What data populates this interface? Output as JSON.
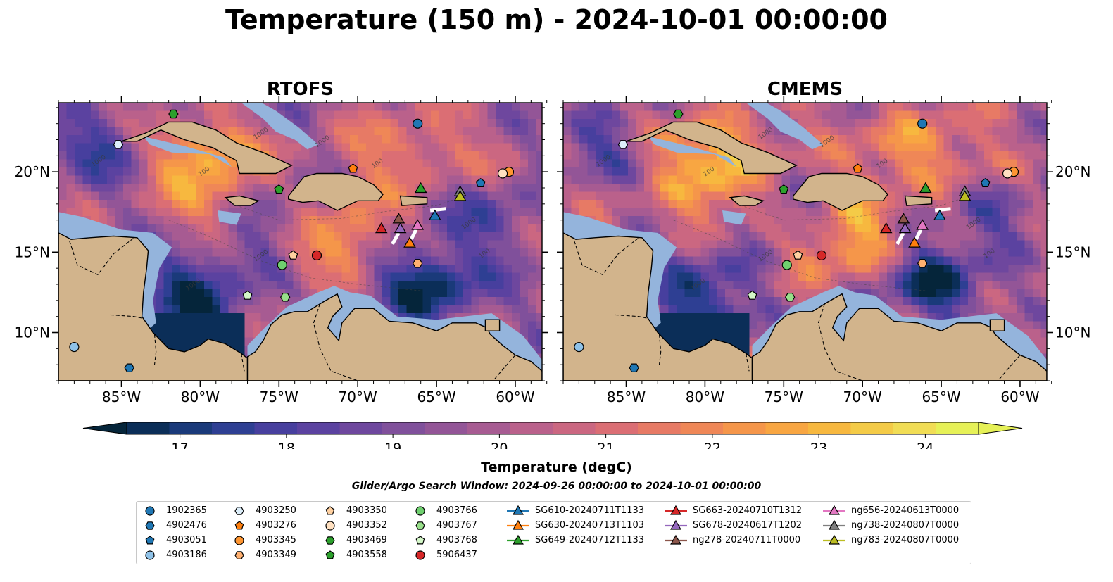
{
  "title": "Temperature (150 m) - 2024-10-01 00:00:00",
  "panels": [
    {
      "title": "RTOFS",
      "variant": "rtofs"
    },
    {
      "title": "CMEMS",
      "variant": "cmems"
    }
  ],
  "axes": {
    "x_ticks": [
      "85°W",
      "80°W",
      "75°W",
      "70°W",
      "65°W",
      "60°W"
    ],
    "x_values": [
      -85,
      -80,
      -75,
      -70,
      -65,
      -60
    ],
    "y_ticks": [
      "20°N",
      "15°N",
      "10°N"
    ],
    "y_values": [
      20,
      15,
      10
    ],
    "lon_range": [
      -89,
      -58.3
    ],
    "lat_range": [
      7,
      24.3
    ]
  },
  "contour_labels": [
    "1000",
    "100"
  ],
  "colorbar": {
    "label": "Temperature (degC)",
    "ticks": [
      "17",
      "18",
      "19",
      "20",
      "21",
      "22",
      "23",
      "24"
    ],
    "range": [
      16.5,
      24.5
    ],
    "step": 0.5,
    "extend": "both",
    "colormap": "thermal",
    "colors": [
      "#05253a",
      "#0b2e58",
      "#1a3a7a",
      "#2e3f93",
      "#473f9e",
      "#5b42a0",
      "#6e479e",
      "#80509b",
      "#935597",
      "#a75b92",
      "#ba618b",
      "#cb6781",
      "#db6e74",
      "#e77a65",
      "#ef8757",
      "#f5964a",
      "#f8a642",
      "#f7b83f",
      "#f4cb47",
      "#f1dd55",
      "#e6f157"
    ],
    "land_color": "#d2b48c",
    "shelf_color": "#94b4dc"
  },
  "search_window": "Glider/Argo Search Window: 2024-09-26 00:00:00 to 2024-10-01 00:00:00",
  "legend": [
    {
      "label": "1902365",
      "marker": "circle",
      "color": "#1f77b4"
    },
    {
      "label": "4902476",
      "marker": "hexagon",
      "color": "#1f77b4"
    },
    {
      "label": "4903051",
      "marker": "pentagon",
      "color": "#1f77b4"
    },
    {
      "label": "4903186",
      "marker": "circle",
      "color": "#8fc2e8"
    },
    {
      "label": "4903250",
      "marker": "hexagon",
      "color": "#dceefa"
    },
    {
      "label": "4903276",
      "marker": "pentagon",
      "color": "#ff7f0e"
    },
    {
      "label": "4903345",
      "marker": "circle",
      "color": "#ff9632"
    },
    {
      "label": "4903349",
      "marker": "hexagon",
      "color": "#ffb070"
    },
    {
      "label": "4903350",
      "marker": "pentagon",
      "color": "#ffd0a0"
    },
    {
      "label": "4903352",
      "marker": "circle",
      "color": "#ffe0c0"
    },
    {
      "label": "4903469",
      "marker": "hexagon",
      "color": "#2ca02c"
    },
    {
      "label": "4903558",
      "marker": "pentagon",
      "color": "#2ca02c"
    },
    {
      "label": "4903766",
      "marker": "circle",
      "color": "#6fd06f"
    },
    {
      "label": "4903767",
      "marker": "hexagon",
      "color": "#98df8a"
    },
    {
      "label": "4903768",
      "marker": "pentagon",
      "color": "#d4f7c8"
    },
    {
      "label": "5906437",
      "marker": "circle",
      "color": "#d62728"
    },
    {
      "label": "SG610-20240711T1133",
      "marker": "triangle",
      "color": "#1f77b4"
    },
    {
      "label": "SG630-20240713T1103",
      "marker": "triangle",
      "color": "#ff7f0e"
    },
    {
      "label": "SG649-20240712T1133",
      "marker": "triangle",
      "color": "#2ca02c"
    },
    {
      "label": "SG663-20240710T1312",
      "marker": "triangle",
      "color": "#d62728"
    },
    {
      "label": "SG678-20240617T1202",
      "marker": "triangle",
      "color": "#9467bd"
    },
    {
      "label": "ng278-20240711T0000",
      "marker": "triangle",
      "color": "#8c564b"
    },
    {
      "label": "ng656-20240613T0000",
      "marker": "triangle",
      "color": "#e377c2"
    },
    {
      "label": "ng738-20240807T0000",
      "marker": "triangle",
      "color": "#7f7f7f"
    },
    {
      "label": "ng783-20240807T0000",
      "marker": "triangle",
      "color": "#bcbd22"
    }
  ],
  "stations": [
    {
      "id": "1902365",
      "lon": -66.2,
      "lat": 23.0
    },
    {
      "id": "4902476",
      "lon": -84.5,
      "lat": 7.8
    },
    {
      "id": "4903051",
      "lon": -62.2,
      "lat": 19.3
    },
    {
      "id": "4903186",
      "lon": -88.0,
      "lat": 9.1
    },
    {
      "id": "4903250",
      "lon": -85.2,
      "lat": 21.7
    },
    {
      "id": "4903276",
      "lon": -70.3,
      "lat": 20.2
    },
    {
      "id": "4903345",
      "lon": -60.4,
      "lat": 20.0
    },
    {
      "id": "4903349",
      "lon": -66.2,
      "lat": 14.3
    },
    {
      "id": "4903350",
      "lon": -74.1,
      "lat": 14.8
    },
    {
      "id": "4903352",
      "lon": -60.8,
      "lat": 19.9
    },
    {
      "id": "4903469",
      "lon": -81.7,
      "lat": 23.6
    },
    {
      "id": "4903558",
      "lon": -75.0,
      "lat": 18.9
    },
    {
      "id": "4903766",
      "lon": -74.8,
      "lat": 14.2
    },
    {
      "id": "4903767",
      "lon": -74.6,
      "lat": 12.2
    },
    {
      "id": "4903768",
      "lon": -77.0,
      "lat": 12.3
    },
    {
      "id": "5906437",
      "lon": -72.6,
      "lat": 14.8
    },
    {
      "id": "SG610-20240711T1133",
      "lon": -65.1,
      "lat": 17.3
    },
    {
      "id": "SG630-20240713T1103",
      "lon": -66.7,
      "lat": 15.6
    },
    {
      "id": "SG649-20240712T1133",
      "lon": -66.0,
      "lat": 19.0
    },
    {
      "id": "SG663-20240710T1312",
      "lon": -68.5,
      "lat": 16.5
    },
    {
      "id": "SG678-20240617T1202",
      "lon": -67.3,
      "lat": 16.5
    },
    {
      "id": "ng278-20240711T0000",
      "lon": -67.4,
      "lat": 17.1
    },
    {
      "id": "ng656-20240613T0000",
      "lon": -66.2,
      "lat": 16.7
    },
    {
      "id": "ng738-20240807T0000",
      "lon": -63.5,
      "lat": 18.8
    },
    {
      "id": "ng783-20240807T0000",
      "lon": -63.5,
      "lat": 18.5
    }
  ]
}
